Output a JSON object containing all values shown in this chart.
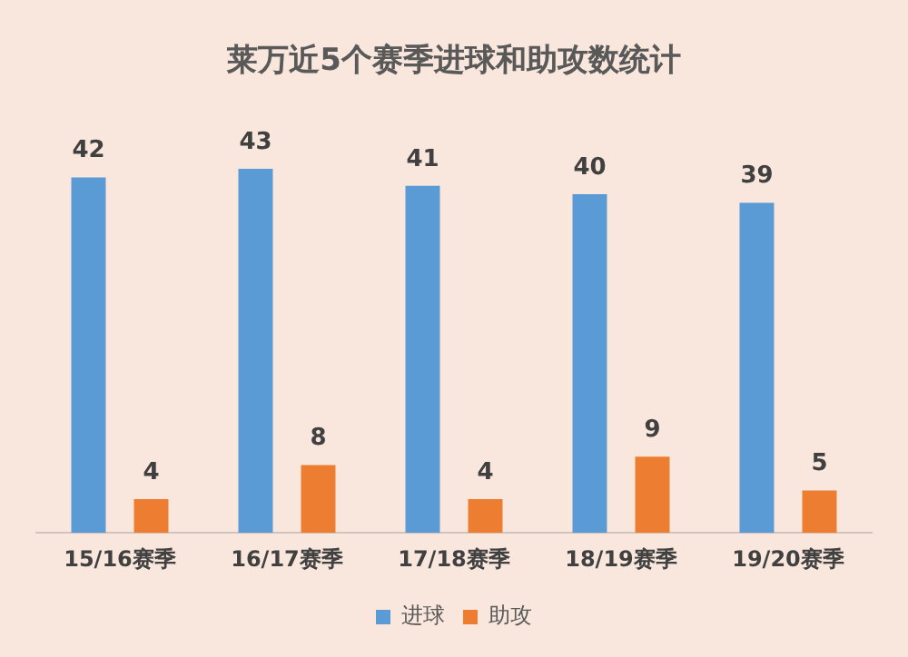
{
  "chart_data": {
    "type": "bar",
    "title": "莱万近5个赛季进球和助攻数统计",
    "categories": [
      "15/16赛季",
      "16/17赛季",
      "17/18赛季",
      "18/19赛季",
      "19/20赛季"
    ],
    "series": [
      {
        "name": "进球",
        "color": "#5b9bd5",
        "values": [
          42,
          43,
          41,
          40,
          39
        ]
      },
      {
        "name": "助攻",
        "color": "#ed7d31",
        "values": [
          4,
          8,
          4,
          9,
          5
        ]
      }
    ],
    "data_labels": true,
    "legend": "bottom",
    "grid": false
  }
}
